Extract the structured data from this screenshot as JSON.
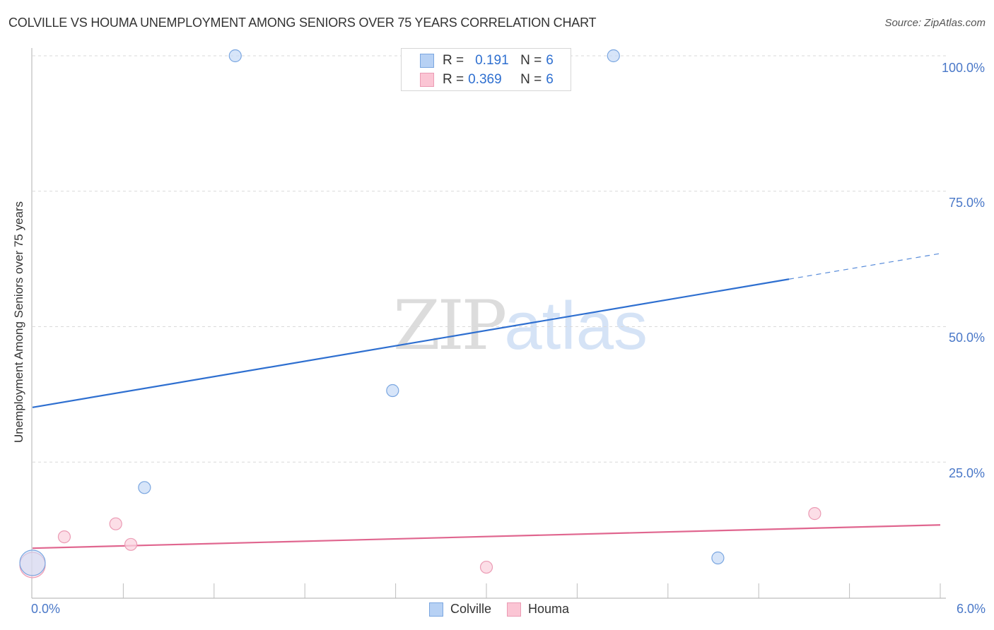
{
  "header": {
    "title": "COLVILLE VS HOUMA UNEMPLOYMENT AMONG SENIORS OVER 75 YEARS CORRELATION CHART",
    "source": "Source: ZipAtlas.com"
  },
  "watermark": {
    "zip": "ZIP",
    "atlas": "atlas"
  },
  "legend": {
    "rows": [
      {
        "series": "Colville",
        "r_label": "R =",
        "r_value": "0.191",
        "n_label": "N =",
        "n_value": "6",
        "color": "#b7d1f4"
      },
      {
        "series": "Houma",
        "r_label": "R =",
        "r_value": "0.369",
        "n_label": "N =",
        "n_value": "6",
        "color": "#fbc5d4"
      }
    ]
  },
  "bottom_legend": {
    "items": [
      {
        "label": "Colville",
        "color": "#b7d1f4"
      },
      {
        "label": "Houma",
        "color": "#fbc5d4"
      }
    ]
  },
  "axes": {
    "y_label": "Unemployment Among Seniors over 75 years",
    "y_ticks": [
      "100.0%",
      "75.0%",
      "50.0%",
      "25.0%"
    ],
    "x_ticks": [
      "0.0%",
      "6.0%"
    ]
  },
  "chart_data": {
    "type": "scatter",
    "title": "COLVILLE VS HOUMA UNEMPLOYMENT AMONG SENIORS OVER 75 YEARS CORRELATION CHART",
    "xlabel": "",
    "ylabel": "Unemployment Among Seniors over 75 years",
    "xlim": [
      0,
      6
    ],
    "ylim": [
      0,
      100
    ],
    "x_unit": "%",
    "y_unit": "%",
    "grid": true,
    "legend_position": "top-center",
    "series": [
      {
        "name": "Colville",
        "color": "#7aa6e0",
        "fill": "#c9dcf7",
        "r": 0.191,
        "n": 6,
        "points": [
          {
            "x": 0.0,
            "y": 6.4
          },
          {
            "x": 0.74,
            "y": 20.3
          },
          {
            "x": 1.34,
            "y": 100.0
          },
          {
            "x": 2.38,
            "y": 38.2
          },
          {
            "x": 3.84,
            "y": 100.0
          },
          {
            "x": 4.53,
            "y": 7.3
          }
        ],
        "trend": {
          "x0": 0.0,
          "y0": 35.1,
          "x1": 6.0,
          "y1": 63.5,
          "solid_until_x": 5.0,
          "color": "#2e6fd0"
        }
      },
      {
        "name": "Houma",
        "color": "#eb9bb4",
        "fill": "#fbd3df",
        "r": 0.369,
        "n": 6,
        "points": [
          {
            "x": 0.0,
            "y": 6.0
          },
          {
            "x": 0.21,
            "y": 11.2
          },
          {
            "x": 0.55,
            "y": 13.6
          },
          {
            "x": 0.65,
            "y": 9.8
          },
          {
            "x": 3.0,
            "y": 5.6
          },
          {
            "x": 5.17,
            "y": 15.5
          }
        ],
        "trend": {
          "x0": 0.0,
          "y0": 9.1,
          "x1": 6.0,
          "y1": 13.4,
          "solid_until_x": 6.0,
          "color": "#e0668f"
        }
      }
    ]
  }
}
